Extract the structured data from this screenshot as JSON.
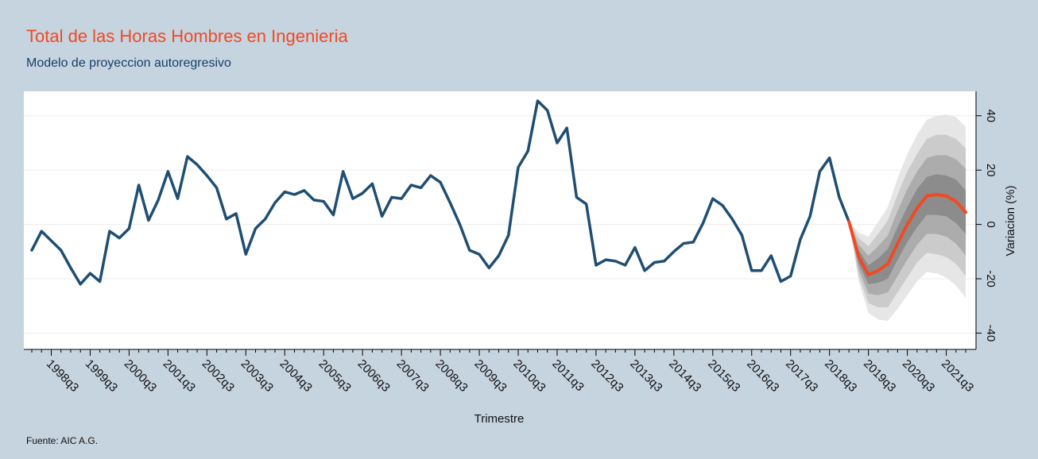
{
  "chart_data": {
    "type": "fan",
    "title": "Total de las Horas Hombres en Ingenieria",
    "subtitle": "Modelo de proyeccion autoregresivo",
    "x_label": "Trimestre",
    "y_label": "Variacion (%)",
    "source": "Fuente: AIC A.G.",
    "x": [
      "1998q1",
      "1998q2",
      "1998q3",
      "1998q4",
      "1999q1",
      "1999q2",
      "1999q3",
      "1999q4",
      "2000q1",
      "2000q2",
      "2000q3",
      "2000q4",
      "2001q1",
      "2001q2",
      "2001q3",
      "2001q4",
      "2002q1",
      "2002q2",
      "2002q3",
      "2002q4",
      "2003q1",
      "2003q2",
      "2003q3",
      "2003q4",
      "2004q1",
      "2004q2",
      "2004q3",
      "2004q4",
      "2005q1",
      "2005q2",
      "2005q3",
      "2005q4",
      "2006q1",
      "2006q2",
      "2006q3",
      "2006q4",
      "2007q1",
      "2007q2",
      "2007q3",
      "2007q4",
      "2008q1",
      "2008q2",
      "2008q3",
      "2008q4",
      "2009q1",
      "2009q2",
      "2009q3",
      "2009q4",
      "2010q1",
      "2010q2",
      "2010q3",
      "2010q4",
      "2011q1",
      "2011q2",
      "2011q3",
      "2011q4",
      "2012q1",
      "2012q2",
      "2012q3",
      "2012q4",
      "2013q1",
      "2013q2",
      "2013q3",
      "2013q4",
      "2014q1",
      "2014q2",
      "2014q3",
      "2014q4",
      "2015q1",
      "2015q2",
      "2015q3",
      "2015q4",
      "2016q1",
      "2016q2",
      "2016q3",
      "2016q4",
      "2017q1",
      "2017q2",
      "2017q3",
      "2017q4",
      "2018q1",
      "2018q2",
      "2018q3",
      "2018q4",
      "2019q1",
      "2019q2",
      "2019q3",
      "2019q4",
      "2020q1",
      "2020q2",
      "2020q3",
      "2020q4",
      "2021q1",
      "2021q2",
      "2021q3",
      "2021q4",
      "2022q1"
    ],
    "xtick_every": 4,
    "xtick_first": 2,
    "ylim": [
      -46,
      49
    ],
    "yticks": [
      -40,
      -20,
      0,
      20,
      40
    ],
    "grid": true,
    "series": [
      {
        "color": "#1f4e72",
        "values": [
          -9.5,
          -2.5,
          -6,
          -9.5,
          -16,
          -22,
          -18,
          -21,
          -2.5,
          -5,
          -1.5,
          14.5,
          1.5,
          9,
          19.5,
          9.5,
          25,
          22,
          18,
          13.5,
          2,
          4,
          -11,
          -1.5,
          2,
          8,
          12,
          11,
          12.5,
          9,
          8.5,
          3.5,
          19.5,
          9.5,
          11.5,
          15,
          3,
          10,
          9.5,
          14.5,
          13.5,
          18,
          15.5,
          8,
          0,
          -9.5,
          -11,
          -16,
          -11.5,
          -4,
          21,
          27,
          45.5,
          42,
          30,
          35.5,
          10,
          7.5,
          -15,
          -13,
          -13.5,
          -15,
          -8.5,
          -17,
          -14,
          -13.5,
          -10,
          -7,
          -6.5,
          0.5,
          9.5,
          7,
          2,
          -4,
          -17,
          -17,
          -11.5,
          -21,
          -19,
          -5.5,
          3,
          19.5,
          24.5,
          10,
          1,
          null,
          null,
          null,
          null,
          null,
          null,
          null,
          null,
          null,
          null,
          null,
          null
        ]
      },
      {
        "color": "#f04a24",
        "values": [
          null,
          null,
          null,
          null,
          null,
          null,
          null,
          null,
          null,
          null,
          null,
          null,
          null,
          null,
          null,
          null,
          null,
          null,
          null,
          null,
          null,
          null,
          null,
          null,
          null,
          null,
          null,
          null,
          null,
          null,
          null,
          null,
          null,
          null,
          null,
          null,
          null,
          null,
          null,
          null,
          null,
          null,
          null,
          null,
          null,
          null,
          null,
          null,
          null,
          null,
          null,
          null,
          null,
          null,
          null,
          null,
          null,
          null,
          null,
          null,
          null,
          null,
          null,
          null,
          null,
          null,
          null,
          null,
          null,
          null,
          null,
          null,
          null,
          null,
          null,
          null,
          null,
          null,
          null,
          null,
          null,
          null,
          null,
          null,
          1,
          -12,
          -18.5,
          -17,
          -14.5,
          -7,
          0,
          6,
          10.5,
          11,
          10.5,
          8.5,
          4.5
        ]
      }
    ],
    "fan": [
      {
        "color": "#e6e6e6",
        "upper": [
          null,
          null,
          null,
          null,
          null,
          null,
          null,
          null,
          null,
          null,
          null,
          null,
          null,
          null,
          null,
          null,
          null,
          null,
          null,
          null,
          null,
          null,
          null,
          null,
          null,
          null,
          null,
          null,
          null,
          null,
          null,
          null,
          null,
          null,
          null,
          null,
          null,
          null,
          null,
          null,
          null,
          null,
          null,
          null,
          null,
          null,
          null,
          null,
          null,
          null,
          null,
          null,
          null,
          null,
          null,
          null,
          null,
          null,
          null,
          null,
          null,
          null,
          null,
          null,
          null,
          null,
          null,
          null,
          null,
          null,
          null,
          null,
          null,
          null,
          null,
          null,
          null,
          null,
          null,
          null,
          null,
          null,
          null,
          null,
          1,
          -3,
          -4.5,
          1,
          6.5,
          17,
          26,
          33,
          38.5,
          40,
          40.5,
          39.5,
          36
        ],
        "lower": [
          null,
          null,
          null,
          null,
          null,
          null,
          null,
          null,
          null,
          null,
          null,
          null,
          null,
          null,
          null,
          null,
          null,
          null,
          null,
          null,
          null,
          null,
          null,
          null,
          null,
          null,
          null,
          null,
          null,
          null,
          null,
          null,
          null,
          null,
          null,
          null,
          null,
          null,
          null,
          null,
          null,
          null,
          null,
          null,
          null,
          null,
          null,
          null,
          null,
          null,
          null,
          null,
          null,
          null,
          null,
          null,
          null,
          null,
          null,
          null,
          null,
          null,
          null,
          null,
          null,
          null,
          null,
          null,
          null,
          null,
          null,
          null,
          null,
          null,
          null,
          null,
          null,
          null,
          null,
          null,
          null,
          null,
          null,
          null,
          1,
          -21,
          -32.5,
          -35,
          -35.5,
          -31,
          -26,
          -21,
          -17.5,
          -18,
          -19.5,
          -22.5,
          -27
        ]
      },
      {
        "color": "#cbcbcb",
        "upper": [
          null,
          null,
          null,
          null,
          null,
          null,
          null,
          null,
          null,
          null,
          null,
          null,
          null,
          null,
          null,
          null,
          null,
          null,
          null,
          null,
          null,
          null,
          null,
          null,
          null,
          null,
          null,
          null,
          null,
          null,
          null,
          null,
          null,
          null,
          null,
          null,
          null,
          null,
          null,
          null,
          null,
          null,
          null,
          null,
          null,
          null,
          null,
          null,
          null,
          null,
          null,
          null,
          null,
          null,
          null,
          null,
          null,
          null,
          null,
          null,
          null,
          null,
          null,
          null,
          null,
          null,
          null,
          null,
          null,
          null,
          null,
          null,
          null,
          null,
          null,
          null,
          null,
          null,
          null,
          null,
          null,
          null,
          null,
          null,
          1,
          -5,
          -8,
          -3.5,
          1.5,
          11,
          19.5,
          26,
          31.5,
          33,
          33,
          31.5,
          28
        ],
        "lower": [
          null,
          null,
          null,
          null,
          null,
          null,
          null,
          null,
          null,
          null,
          null,
          null,
          null,
          null,
          null,
          null,
          null,
          null,
          null,
          null,
          null,
          null,
          null,
          null,
          null,
          null,
          null,
          null,
          null,
          null,
          null,
          null,
          null,
          null,
          null,
          null,
          null,
          null,
          null,
          null,
          null,
          null,
          null,
          null,
          null,
          null,
          null,
          null,
          null,
          null,
          null,
          null,
          null,
          null,
          null,
          null,
          null,
          null,
          null,
          null,
          null,
          null,
          null,
          null,
          null,
          null,
          null,
          null,
          null,
          null,
          null,
          null,
          null,
          null,
          null,
          null,
          null,
          null,
          null,
          null,
          null,
          null,
          null,
          null,
          1,
          -19,
          -29,
          -30.5,
          -30.5,
          -25,
          -19.5,
          -14,
          -10.5,
          -11,
          -12,
          -14.5,
          -19
        ]
      },
      {
        "color": "#acacac",
        "upper": [
          null,
          null,
          null,
          null,
          null,
          null,
          null,
          null,
          null,
          null,
          null,
          null,
          null,
          null,
          null,
          null,
          null,
          null,
          null,
          null,
          null,
          null,
          null,
          null,
          null,
          null,
          null,
          null,
          null,
          null,
          null,
          null,
          null,
          null,
          null,
          null,
          null,
          null,
          null,
          null,
          null,
          null,
          null,
          null,
          null,
          null,
          null,
          null,
          null,
          null,
          null,
          null,
          null,
          null,
          null,
          null,
          null,
          null,
          null,
          null,
          null,
          null,
          null,
          null,
          null,
          null,
          null,
          null,
          null,
          null,
          null,
          null,
          null,
          null,
          null,
          null,
          null,
          null,
          null,
          null,
          null,
          null,
          null,
          null,
          1,
          -7.5,
          -11.5,
          -8,
          -4,
          5,
          13,
          19.5,
          24.5,
          25.5,
          25.5,
          24,
          20.5
        ],
        "lower": [
          null,
          null,
          null,
          null,
          null,
          null,
          null,
          null,
          null,
          null,
          null,
          null,
          null,
          null,
          null,
          null,
          null,
          null,
          null,
          null,
          null,
          null,
          null,
          null,
          null,
          null,
          null,
          null,
          null,
          null,
          null,
          null,
          null,
          null,
          null,
          null,
          null,
          null,
          null,
          null,
          null,
          null,
          null,
          null,
          null,
          null,
          null,
          null,
          null,
          null,
          null,
          null,
          null,
          null,
          null,
          null,
          null,
          null,
          null,
          null,
          null,
          null,
          null,
          null,
          null,
          null,
          null,
          null,
          null,
          null,
          null,
          null,
          null,
          null,
          null,
          null,
          null,
          null,
          null,
          null,
          null,
          null,
          null,
          null,
          1,
          -16.5,
          -25.5,
          -26,
          -25,
          -19,
          -13,
          -7.5,
          -3.5,
          -3.5,
          -4.5,
          -7,
          -11.5
        ]
      },
      {
        "color": "#8c8c8c",
        "upper": [
          null,
          null,
          null,
          null,
          null,
          null,
          null,
          null,
          null,
          null,
          null,
          null,
          null,
          null,
          null,
          null,
          null,
          null,
          null,
          null,
          null,
          null,
          null,
          null,
          null,
          null,
          null,
          null,
          null,
          null,
          null,
          null,
          null,
          null,
          null,
          null,
          null,
          null,
          null,
          null,
          null,
          null,
          null,
          null,
          null,
          null,
          null,
          null,
          null,
          null,
          null,
          null,
          null,
          null,
          null,
          null,
          null,
          null,
          null,
          null,
          null,
          null,
          null,
          null,
          null,
          null,
          null,
          null,
          null,
          null,
          null,
          null,
          null,
          null,
          null,
          null,
          null,
          null,
          null,
          null,
          null,
          null,
          null,
          null,
          1,
          -9.5,
          -15,
          -12.5,
          -9,
          -1,
          6.5,
          13,
          17.5,
          18.5,
          18,
          16.5,
          12.5
        ],
        "lower": [
          null,
          null,
          null,
          null,
          null,
          null,
          null,
          null,
          null,
          null,
          null,
          null,
          null,
          null,
          null,
          null,
          null,
          null,
          null,
          null,
          null,
          null,
          null,
          null,
          null,
          null,
          null,
          null,
          null,
          null,
          null,
          null,
          null,
          null,
          null,
          null,
          null,
          null,
          null,
          null,
          null,
          null,
          null,
          null,
          null,
          null,
          null,
          null,
          null,
          null,
          null,
          null,
          null,
          null,
          null,
          null,
          null,
          null,
          null,
          null,
          null,
          null,
          null,
          null,
          null,
          null,
          null,
          null,
          null,
          null,
          null,
          null,
          null,
          null,
          null,
          null,
          null,
          null,
          null,
          null,
          null,
          null,
          null,
          null,
          1,
          -14.5,
          -22,
          -21.5,
          -20,
          -13,
          -6.5,
          -1,
          3.5,
          3.5,
          3,
          0.5,
          -3.5
        ]
      }
    ]
  }
}
